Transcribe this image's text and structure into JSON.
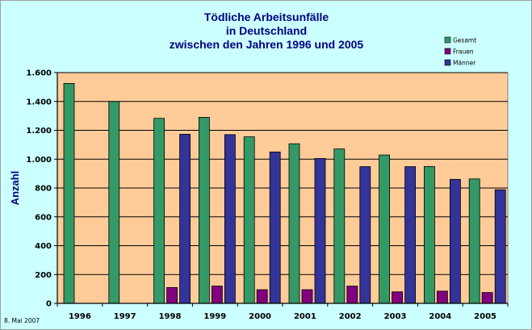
{
  "chart_data": {
    "type": "bar",
    "title": [
      "Tödliche Arbeitsunfälle",
      "in Deutschland",
      "zwischen den Jahren 1996 und 2005"
    ],
    "ylabel": "Anzahl",
    "xlabel": "",
    "categories": [
      "1996",
      "1997",
      "1998",
      "1999",
      "2000",
      "2001",
      "2002",
      "2003",
      "2004",
      "2005"
    ],
    "series": [
      {
        "name": "Gesamt",
        "color": "#339966",
        "values": [
          1525,
          1400,
          1283,
          1290,
          1155,
          1107,
          1071,
          1029,
          949,
          863
        ]
      },
      {
        "name": "Frauen",
        "color": "#800080",
        "values": [
          null,
          null,
          110,
          120,
          95,
          95,
          120,
          80,
          85,
          75
        ]
      },
      {
        "name": "Männer",
        "color": "#333399",
        "values": [
          null,
          null,
          1173,
          1170,
          1050,
          1005,
          948,
          948,
          860,
          788
        ]
      }
    ],
    "ylim": [
      0,
      1600
    ],
    "yticks": [
      0,
      200,
      400,
      600,
      800,
      1000,
      1200,
      1400,
      1600
    ],
    "ytick_labels": [
      "0",
      "200",
      "400",
      "600",
      "800",
      "1.000",
      "1.200",
      "1.400",
      "1.600"
    ],
    "grid": true,
    "legend_position": "top-right",
    "plot_background": "#ffcc99",
    "chart_background": "#ccffff",
    "title_color": "#000080"
  },
  "footnote": "8. Mai 2007"
}
